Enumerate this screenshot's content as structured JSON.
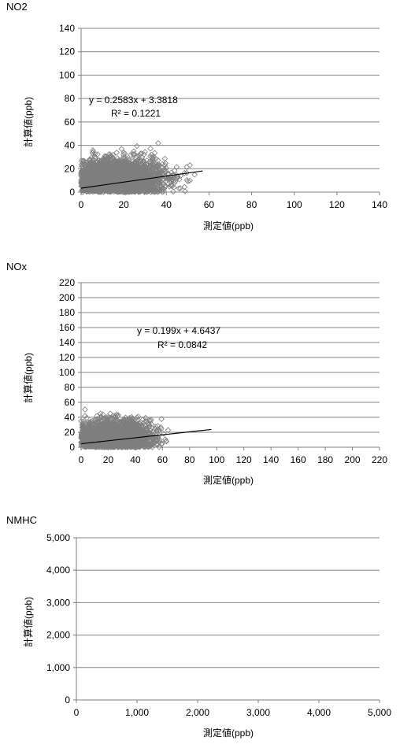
{
  "chart_data": [
    {
      "type": "scatter",
      "title": "NO2",
      "xlabel": "測定値(ppb)",
      "ylabel": "計算値(ppb)",
      "xlim": [
        0,
        140
      ],
      "ylim": [
        0,
        140
      ],
      "xticks": [
        0,
        20,
        40,
        60,
        80,
        100,
        120,
        140
      ],
      "yticks": [
        0,
        20,
        40,
        60,
        80,
        100,
        120,
        140
      ],
      "grid": "horizontal",
      "series": [
        {
          "marker": "diamond",
          "color": "#7f7f7f",
          "cloud": {
            "count": 2600,
            "x_mean": 18,
            "x_sd": 11,
            "y_mean": 11,
            "y_sd": 9,
            "x_max": 57,
            "y_max": 50
          }
        }
      ],
      "trendline": {
        "slope": 0.2583,
        "intercept": 3.3818,
        "x_range": [
          0,
          57
        ],
        "equation": "y = 0.2583x + 3.3818",
        "r2": "R² = 0.1221"
      }
    },
    {
      "type": "scatter",
      "title": "NOx",
      "xlabel": "測定値(ppb)",
      "ylabel": "計算値(ppb)",
      "xlim": [
        0,
        220
      ],
      "ylim": [
        0,
        220
      ],
      "xticks": [
        0,
        20,
        40,
        60,
        80,
        100,
        120,
        140,
        160,
        180,
        200,
        220
      ],
      "yticks": [
        0,
        20,
        40,
        60,
        80,
        100,
        120,
        140,
        160,
        180,
        200,
        220
      ],
      "grid": "horizontal",
      "series": [
        {
          "marker": "diamond",
          "color": "#7f7f7f",
          "cloud": {
            "count": 2600,
            "x_mean": 24,
            "x_sd": 14,
            "y_mean": 13,
            "y_sd": 11,
            "x_max": 96,
            "y_max": 60
          }
        }
      ],
      "trendline": {
        "slope": 0.199,
        "intercept": 4.6437,
        "x_range": [
          0,
          96
        ],
        "equation": "y = 0.199x + 4.6437",
        "r2": "R² = 0.0842"
      }
    },
    {
      "type": "scatter",
      "title": "NMHC",
      "xlabel": "測定値(ppb)",
      "ylabel": "計算値(ppb)",
      "xlim": [
        0,
        5000
      ],
      "ylim": [
        0,
        5000
      ],
      "xticks": [
        "0",
        "1,000",
        "2,000",
        "3,000",
        "4,000",
        "5,000"
      ],
      "yticks": [
        "0",
        "1,000",
        "2,000",
        "3,000",
        "4,000",
        "5,000"
      ],
      "grid": "horizontal",
      "series": []
    }
  ]
}
